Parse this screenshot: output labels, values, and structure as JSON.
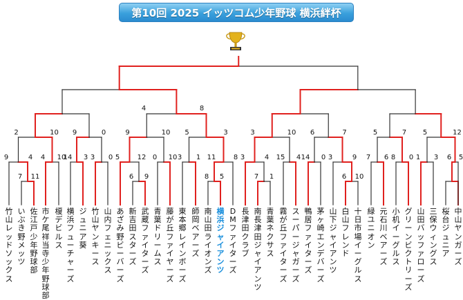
{
  "title": "第10回 2025 イッツコム少年野球 横浜絆杯",
  "colors": {
    "winner_line": "#e0201e",
    "loser_line": "#333333",
    "highlight_team": "#1a8fdc",
    "banner": "#3aa0dc"
  },
  "trophy_icon": "trophy-icon",
  "teams": [
    "竹山レッドソックス",
    "いぶき野メッツ",
    "佐江戸少年野球部",
    "市ケ尾祥当寺少年野球部",
    "榎デビルス",
    "横浜フューチャーズ",
    "ジュニア葵",
    "竹山ヤンキース",
    "山内フェニックス",
    "あざみ野ビーバーズ",
    "新吉田スターズ",
    "武蔵ファイターズ",
    "青葉ドリームス",
    "藤が丘ファイヤーズ",
    "東本郷レインボーズ",
    "師岡ベアーズ",
    "南山田ライオンズ",
    "横浜ジャイアンツ",
    "DMファイターズ",
    "長津田クラブ",
    "南長津田ジャイアンツ",
    "青葉ネクサス",
    "霧が丘ファイターズ",
    "スーパージャガーズ",
    "鴨居ファイターズ",
    "茅ヶ崎エンデバーズ",
    "山下ジャイアンツ",
    "白山フレンド",
    "十日市場イーグルス",
    "緑ユニオン",
    "元石川ベアーズ",
    "小机イーグルス",
    "グリーンビクトリーズ",
    "山田バッファローズ",
    "三保ウィングス",
    "桜台ジュニア",
    "中山ヤンガーズ",
    "綱島リバース"
  ],
  "highlight_team_index": 17,
  "score_labels": [
    "4",
    "8",
    "2",
    "10",
    "9",
    "0",
    "9",
    "10",
    "5",
    "3",
    "3",
    "10",
    "6",
    "7",
    "5",
    "7",
    "5",
    "12",
    "9",
    "4",
    "4",
    "10",
    "14",
    "3",
    "3",
    "0",
    "5",
    "12",
    "0",
    "10",
    "3",
    "1",
    "11",
    "8",
    "3",
    "4",
    "15",
    "4",
    "14",
    "0",
    "3",
    "9",
    "7",
    "6",
    "8",
    "0",
    "1",
    "3",
    "6",
    "5",
    "7",
    "11",
    "6",
    "9",
    "8",
    "5",
    "7",
    "1",
    "6",
    "10"
  ]
}
